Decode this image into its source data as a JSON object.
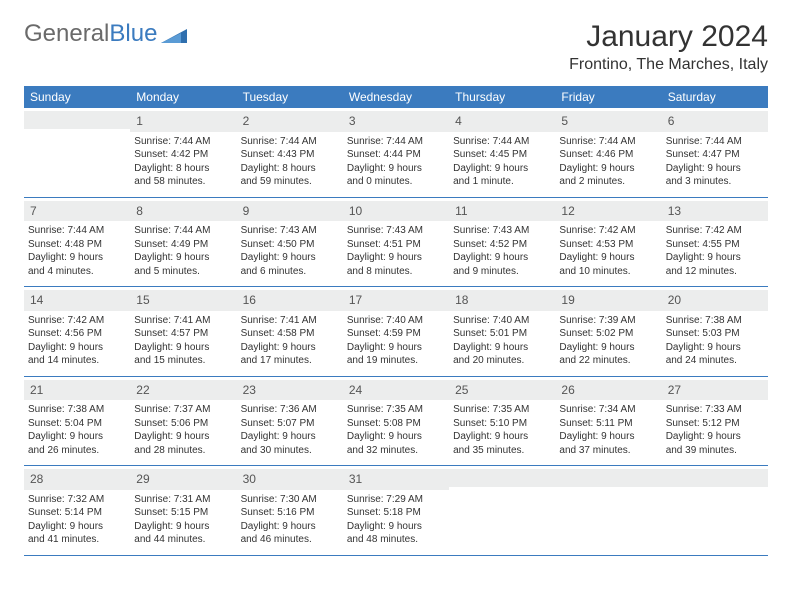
{
  "logo": {
    "text1": "General",
    "text2": "Blue"
  },
  "title": "January 2024",
  "location": "Frontino, The Marches, Italy",
  "day_headers": [
    "Sunday",
    "Monday",
    "Tuesday",
    "Wednesday",
    "Thursday",
    "Friday",
    "Saturday"
  ],
  "colors": {
    "header_bg": "#3b7bbf",
    "header_text": "#ffffff",
    "daynum_bg": "#eceded",
    "border": "#3b7bbf",
    "body_text": "#333333"
  },
  "typography": {
    "title_fontsize": 30,
    "location_fontsize": 16,
    "header_fontsize": 12,
    "daynum_fontsize": 12,
    "body_fontsize": 10
  },
  "weeks": [
    [
      {
        "n": "",
        "sunrise": "",
        "sunset": "",
        "daylight1": "",
        "daylight2": ""
      },
      {
        "n": "1",
        "sunrise": "Sunrise: 7:44 AM",
        "sunset": "Sunset: 4:42 PM",
        "daylight1": "Daylight: 8 hours",
        "daylight2": "and 58 minutes."
      },
      {
        "n": "2",
        "sunrise": "Sunrise: 7:44 AM",
        "sunset": "Sunset: 4:43 PM",
        "daylight1": "Daylight: 8 hours",
        "daylight2": "and 59 minutes."
      },
      {
        "n": "3",
        "sunrise": "Sunrise: 7:44 AM",
        "sunset": "Sunset: 4:44 PM",
        "daylight1": "Daylight: 9 hours",
        "daylight2": "and 0 minutes."
      },
      {
        "n": "4",
        "sunrise": "Sunrise: 7:44 AM",
        "sunset": "Sunset: 4:45 PM",
        "daylight1": "Daylight: 9 hours",
        "daylight2": "and 1 minute."
      },
      {
        "n": "5",
        "sunrise": "Sunrise: 7:44 AM",
        "sunset": "Sunset: 4:46 PM",
        "daylight1": "Daylight: 9 hours",
        "daylight2": "and 2 minutes."
      },
      {
        "n": "6",
        "sunrise": "Sunrise: 7:44 AM",
        "sunset": "Sunset: 4:47 PM",
        "daylight1": "Daylight: 9 hours",
        "daylight2": "and 3 minutes."
      }
    ],
    [
      {
        "n": "7",
        "sunrise": "Sunrise: 7:44 AM",
        "sunset": "Sunset: 4:48 PM",
        "daylight1": "Daylight: 9 hours",
        "daylight2": "and 4 minutes."
      },
      {
        "n": "8",
        "sunrise": "Sunrise: 7:44 AM",
        "sunset": "Sunset: 4:49 PM",
        "daylight1": "Daylight: 9 hours",
        "daylight2": "and 5 minutes."
      },
      {
        "n": "9",
        "sunrise": "Sunrise: 7:43 AM",
        "sunset": "Sunset: 4:50 PM",
        "daylight1": "Daylight: 9 hours",
        "daylight2": "and 6 minutes."
      },
      {
        "n": "10",
        "sunrise": "Sunrise: 7:43 AM",
        "sunset": "Sunset: 4:51 PM",
        "daylight1": "Daylight: 9 hours",
        "daylight2": "and 8 minutes."
      },
      {
        "n": "11",
        "sunrise": "Sunrise: 7:43 AM",
        "sunset": "Sunset: 4:52 PM",
        "daylight1": "Daylight: 9 hours",
        "daylight2": "and 9 minutes."
      },
      {
        "n": "12",
        "sunrise": "Sunrise: 7:42 AM",
        "sunset": "Sunset: 4:53 PM",
        "daylight1": "Daylight: 9 hours",
        "daylight2": "and 10 minutes."
      },
      {
        "n": "13",
        "sunrise": "Sunrise: 7:42 AM",
        "sunset": "Sunset: 4:55 PM",
        "daylight1": "Daylight: 9 hours",
        "daylight2": "and 12 minutes."
      }
    ],
    [
      {
        "n": "14",
        "sunrise": "Sunrise: 7:42 AM",
        "sunset": "Sunset: 4:56 PM",
        "daylight1": "Daylight: 9 hours",
        "daylight2": "and 14 minutes."
      },
      {
        "n": "15",
        "sunrise": "Sunrise: 7:41 AM",
        "sunset": "Sunset: 4:57 PM",
        "daylight1": "Daylight: 9 hours",
        "daylight2": "and 15 minutes."
      },
      {
        "n": "16",
        "sunrise": "Sunrise: 7:41 AM",
        "sunset": "Sunset: 4:58 PM",
        "daylight1": "Daylight: 9 hours",
        "daylight2": "and 17 minutes."
      },
      {
        "n": "17",
        "sunrise": "Sunrise: 7:40 AM",
        "sunset": "Sunset: 4:59 PM",
        "daylight1": "Daylight: 9 hours",
        "daylight2": "and 19 minutes."
      },
      {
        "n": "18",
        "sunrise": "Sunrise: 7:40 AM",
        "sunset": "Sunset: 5:01 PM",
        "daylight1": "Daylight: 9 hours",
        "daylight2": "and 20 minutes."
      },
      {
        "n": "19",
        "sunrise": "Sunrise: 7:39 AM",
        "sunset": "Sunset: 5:02 PM",
        "daylight1": "Daylight: 9 hours",
        "daylight2": "and 22 minutes."
      },
      {
        "n": "20",
        "sunrise": "Sunrise: 7:38 AM",
        "sunset": "Sunset: 5:03 PM",
        "daylight1": "Daylight: 9 hours",
        "daylight2": "and 24 minutes."
      }
    ],
    [
      {
        "n": "21",
        "sunrise": "Sunrise: 7:38 AM",
        "sunset": "Sunset: 5:04 PM",
        "daylight1": "Daylight: 9 hours",
        "daylight2": "and 26 minutes."
      },
      {
        "n": "22",
        "sunrise": "Sunrise: 7:37 AM",
        "sunset": "Sunset: 5:06 PM",
        "daylight1": "Daylight: 9 hours",
        "daylight2": "and 28 minutes."
      },
      {
        "n": "23",
        "sunrise": "Sunrise: 7:36 AM",
        "sunset": "Sunset: 5:07 PM",
        "daylight1": "Daylight: 9 hours",
        "daylight2": "and 30 minutes."
      },
      {
        "n": "24",
        "sunrise": "Sunrise: 7:35 AM",
        "sunset": "Sunset: 5:08 PM",
        "daylight1": "Daylight: 9 hours",
        "daylight2": "and 32 minutes."
      },
      {
        "n": "25",
        "sunrise": "Sunrise: 7:35 AM",
        "sunset": "Sunset: 5:10 PM",
        "daylight1": "Daylight: 9 hours",
        "daylight2": "and 35 minutes."
      },
      {
        "n": "26",
        "sunrise": "Sunrise: 7:34 AM",
        "sunset": "Sunset: 5:11 PM",
        "daylight1": "Daylight: 9 hours",
        "daylight2": "and 37 minutes."
      },
      {
        "n": "27",
        "sunrise": "Sunrise: 7:33 AM",
        "sunset": "Sunset: 5:12 PM",
        "daylight1": "Daylight: 9 hours",
        "daylight2": "and 39 minutes."
      }
    ],
    [
      {
        "n": "28",
        "sunrise": "Sunrise: 7:32 AM",
        "sunset": "Sunset: 5:14 PM",
        "daylight1": "Daylight: 9 hours",
        "daylight2": "and 41 minutes."
      },
      {
        "n": "29",
        "sunrise": "Sunrise: 7:31 AM",
        "sunset": "Sunset: 5:15 PM",
        "daylight1": "Daylight: 9 hours",
        "daylight2": "and 44 minutes."
      },
      {
        "n": "30",
        "sunrise": "Sunrise: 7:30 AM",
        "sunset": "Sunset: 5:16 PM",
        "daylight1": "Daylight: 9 hours",
        "daylight2": "and 46 minutes."
      },
      {
        "n": "31",
        "sunrise": "Sunrise: 7:29 AM",
        "sunset": "Sunset: 5:18 PM",
        "daylight1": "Daylight: 9 hours",
        "daylight2": "and 48 minutes."
      },
      {
        "n": "",
        "sunrise": "",
        "sunset": "",
        "daylight1": "",
        "daylight2": ""
      },
      {
        "n": "",
        "sunrise": "",
        "sunset": "",
        "daylight1": "",
        "daylight2": ""
      },
      {
        "n": "",
        "sunrise": "",
        "sunset": "",
        "daylight1": "",
        "daylight2": ""
      }
    ]
  ]
}
